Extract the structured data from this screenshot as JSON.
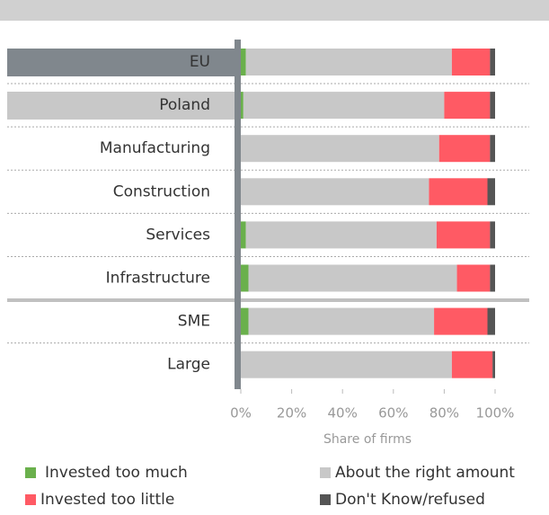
{
  "chart_data": {
    "type": "stacked_barh",
    "categories": [
      "EU",
      "Poland",
      "Manufacturing",
      "Construction",
      "Services",
      "Infrastructure",
      "SME",
      "Large"
    ],
    "series": [
      {
        "name": "Invested too much",
        "color": "#6ab04c",
        "values": [
          2,
          1,
          0,
          0,
          2,
          3,
          3,
          0
        ]
      },
      {
        "name": "About the right amount",
        "color": "#c8c8c8",
        "values": [
          81,
          79,
          78,
          74,
          75,
          82,
          73,
          83
        ]
      },
      {
        "name": "Invested too little",
        "color": "#ff5a64",
        "values": [
          15,
          18,
          20,
          23,
          21,
          13,
          21,
          16
        ]
      },
      {
        "name": "Don't Know/refused",
        "color": "#555555",
        "values": [
          2,
          2,
          2,
          3,
          2,
          2,
          3,
          1
        ]
      }
    ],
    "xlim": [
      0,
      100
    ],
    "xticks": [
      {
        "value": 0,
        "label": "0%"
      },
      {
        "value": 20,
        "label": "20%"
      },
      {
        "value": 40,
        "label": "40%"
      },
      {
        "value": 60,
        "label": "60%"
      },
      {
        "value": 80,
        "label": "80%"
      },
      {
        "value": 100,
        "label": "100%"
      }
    ],
    "xlabel": "Share of firms"
  }
}
